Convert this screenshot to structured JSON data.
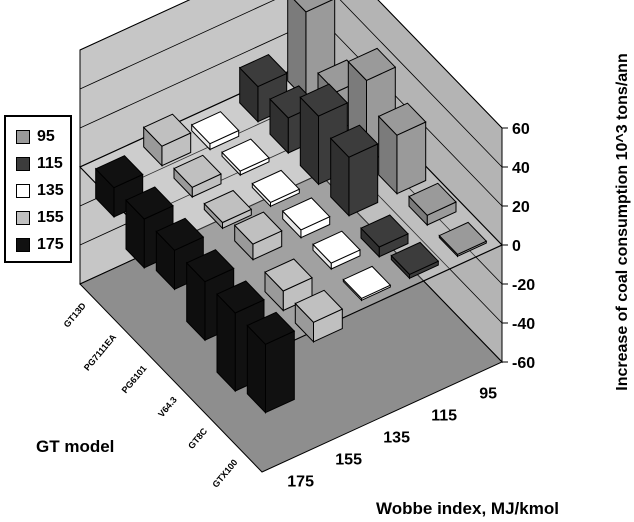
{
  "chart_data": {
    "type": "bar3d",
    "zlabel": "Increase of coal consumption 10^3 tons/ann",
    "xlabel": "Wobbe index, MJ/kmol",
    "ylabel": "GT model",
    "zlim": [
      -60,
      60
    ],
    "zticks": [
      60,
      40,
      20,
      0,
      -20,
      -40,
      -60
    ],
    "wobbe_ticks": [
      "95",
      "115",
      "135",
      "155",
      "175"
    ],
    "gt_models": [
      "GT13D",
      "PG7111EA",
      "PG6101",
      "V64.3",
      "GT8C",
      "GTX100"
    ],
    "legend_position": "left",
    "grid": true,
    "series": [
      {
        "name": "95",
        "color": "#9a9a9a",
        "values": [
          45,
          20,
          42,
          30,
          5,
          1
        ]
      },
      {
        "name": "115",
        "color": "#3c3c3c",
        "values": [
          18,
          18,
          35,
          30,
          -5,
          2
        ]
      },
      {
        "name": "135",
        "color": "#ffffff",
        "values": [
          -3,
          2,
          2,
          4,
          3,
          1
        ]
      },
      {
        "name": "155",
        "color": "#c0c0c0",
        "values": [
          10,
          5,
          3,
          8,
          -10,
          -10
        ]
      },
      {
        "name": "175",
        "color": "#111111",
        "values": [
          -15,
          -25,
          -20,
          -30,
          -40,
          -35
        ]
      }
    ]
  }
}
